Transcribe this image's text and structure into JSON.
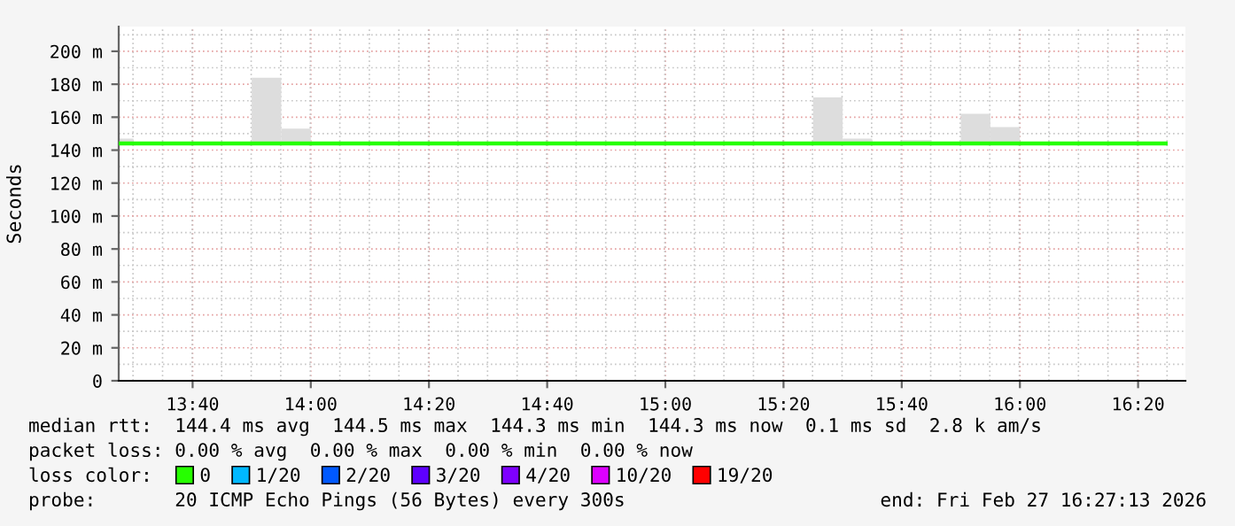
{
  "chart_data": {
    "type": "line",
    "ylabel": "Seconds",
    "xlim": [
      13.4583,
      16.4667
    ],
    "xticks": [
      {
        "value": 13.6667,
        "label": "13:40"
      },
      {
        "value": 14.0,
        "label": "14:00"
      },
      {
        "value": 14.3333,
        "label": "14:20"
      },
      {
        "value": 14.6667,
        "label": "14:40"
      },
      {
        "value": 15.0,
        "label": "15:00"
      },
      {
        "value": 15.3333,
        "label": "15:20"
      },
      {
        "value": 15.6667,
        "label": "15:40"
      },
      {
        "value": 16.0,
        "label": "16:00"
      },
      {
        "value": 16.3333,
        "label": "16:20"
      }
    ],
    "ylim": [
      0,
      215
    ],
    "yticks": [
      0,
      {
        "value": 20,
        "label": "20 m"
      },
      {
        "value": 40,
        "label": "40 m"
      },
      {
        "value": 60,
        "label": "60 m"
      },
      {
        "value": 80,
        "label": "80 m"
      },
      {
        "value": 100,
        "label": "100 m"
      },
      {
        "value": 120,
        "label": "120 m"
      },
      {
        "value": 140,
        "label": "140 m"
      },
      {
        "value": 160,
        "label": "160 m"
      },
      {
        "value": 180,
        "label": "180 m"
      },
      {
        "value": 200,
        "label": "200 m"
      }
    ],
    "grid": true,
    "legend": "bottom",
    "legend_title": "loss color:",
    "series": [
      {
        "type": "bar",
        "color": "#dddddd",
        "x": [
          13.4583,
          13.875,
          13.9583,
          15.4583,
          15.5417,
          15.7083,
          15.875,
          15.9583
        ],
        "base": [
          144,
          144,
          144,
          144,
          144,
          144,
          144,
          144
        ],
        "values": [
          3,
          40,
          9,
          28,
          3,
          2,
          18,
          10
        ]
      },
      {
        "name": "0",
        "color": "#26ff00",
        "x": [
          13.4583,
          16.4167
        ],
        "values": [
          144,
          144
        ]
      },
      {
        "name": "1/20",
        "color": "#00b8ff"
      },
      {
        "name": "2/20",
        "color": "#0059ff"
      },
      {
        "name": "3/20",
        "color": "#5e00ff"
      },
      {
        "name": "4/20",
        "color": "#7e00ff"
      },
      {
        "name": "10/20",
        "color": "#dd00ff"
      },
      {
        "name": "19/20",
        "color": "#ff0000"
      }
    ],
    "annotations": [
      "median rtt:  144.4 ms avg  144.5 ms max  144.3 ms min  144.3 ms now  0.1 ms sd  2.8 k am/s",
      "packet loss: 0.00 % avg  0.00 % max  0.00 % min  0.00 % now",
      "probe:       20 ICMP Echo Pings (56 Bytes) every 300s",
      "end: Fri Feb 27 16:27:13 2026"
    ]
  }
}
